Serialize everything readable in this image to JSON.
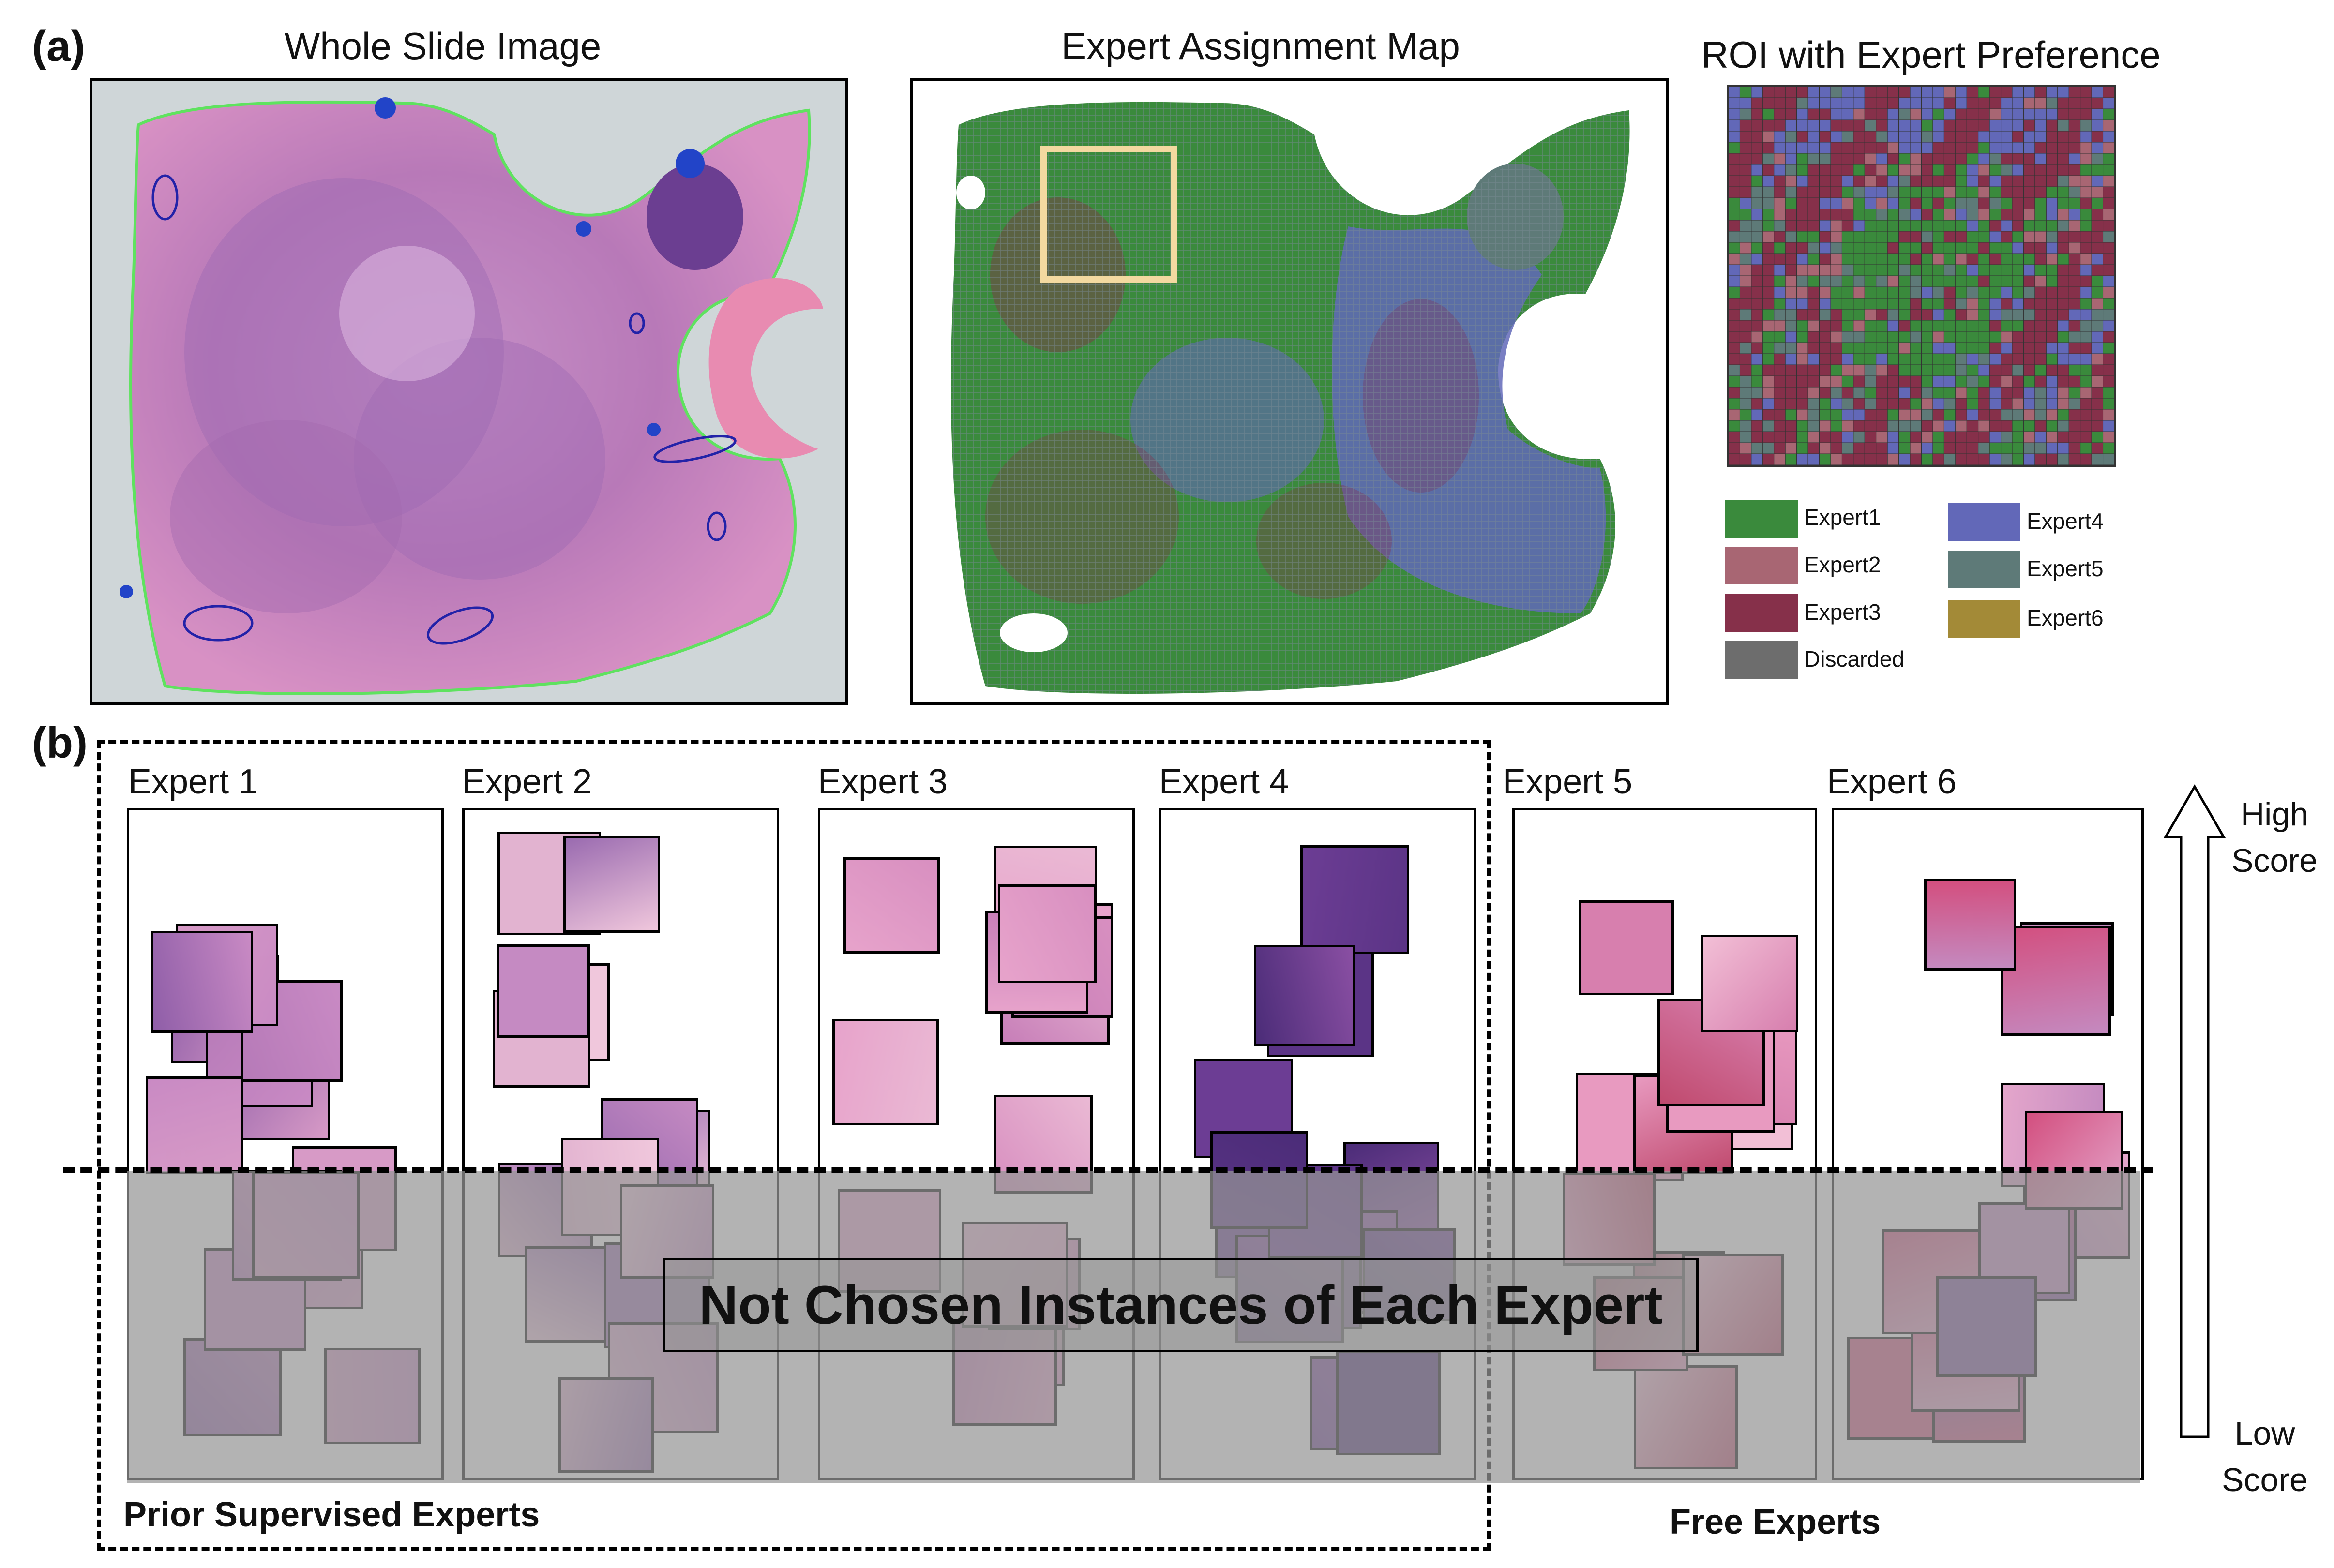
{
  "panel_a": {
    "letter": "(a)",
    "titles": {
      "wsi": "Whole Slide Image",
      "map": "Expert Assignment Map",
      "roi": "ROI with Expert Preference"
    },
    "legend": [
      {
        "label": "Expert1",
        "color": "#3a8a3c"
      },
      {
        "label": "Expert2",
        "color": "#a86673"
      },
      {
        "label": "Expert3",
        "color": "#86304a"
      },
      {
        "label": "Discarded",
        "color": "#6d6d6d"
      },
      {
        "label": "Expert4",
        "color": "#6268b8"
      },
      {
        "label": "Expert5",
        "color": "#5e7a78"
      },
      {
        "label": "Expert6",
        "color": "#a38a37"
      }
    ]
  },
  "panel_b": {
    "letter": "(b)",
    "experts": [
      "Expert 1",
      "Expert 2",
      "Expert 3",
      "Expert 4",
      "Expert 5",
      "Expert 6"
    ],
    "center_label": "Not Chosen Instances of Each Expert",
    "prior_label": "Prior Supervised Experts",
    "free_label": "Free Experts",
    "score_high": "High\nScore",
    "score_low": "Low\nScore"
  },
  "colors": {
    "tissue_pink": "#d48cc6",
    "tissue_purple": "#8e5aa6",
    "annotation_green": "#5fe25f",
    "annotation_blue": "#2222a8",
    "roi_box": "#f3d9a0",
    "gray_band": "#969696"
  }
}
